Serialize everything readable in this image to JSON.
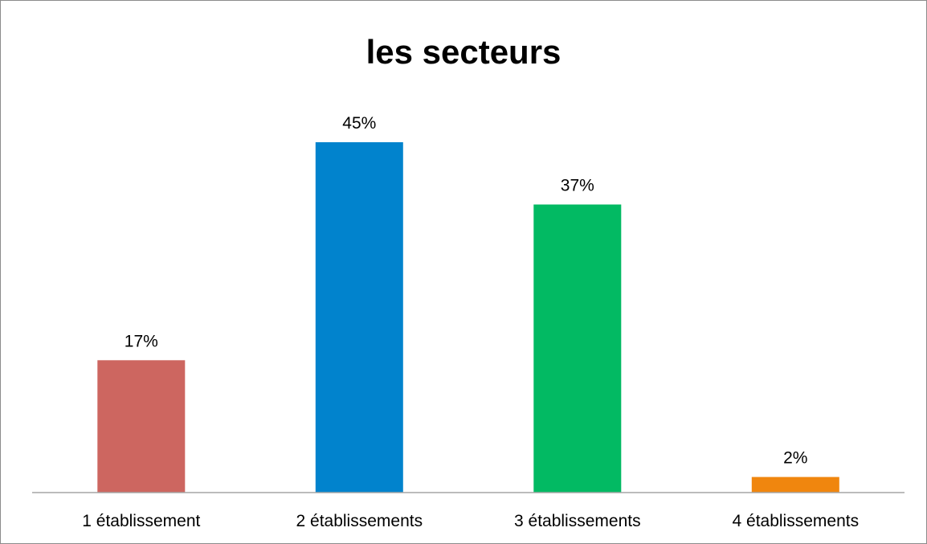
{
  "chart_data": {
    "type": "bar",
    "title": "les secteurs",
    "categories": [
      "1 établissement",
      "2 établissements",
      "3 établissements",
      "4 établissements"
    ],
    "values": [
      17,
      45,
      37,
      2
    ],
    "data_labels": [
      "17%",
      "45%",
      "37%",
      "2%"
    ],
    "colors": [
      "#cd6660",
      "#0183cd",
      "#02ba63",
      "#f0860e"
    ],
    "ylim": [
      0,
      50
    ],
    "grid": false,
    "legend": "none"
  }
}
